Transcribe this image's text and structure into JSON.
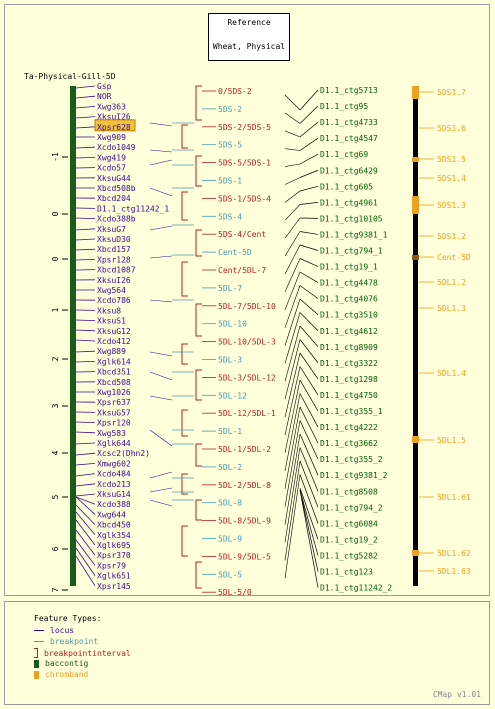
{
  "reference": {
    "line1": "Reference",
    "line2": "Wheat, Physical"
  },
  "map_title": "Ta-Physical-Gill-5D",
  "scale_ticks": [
    "-1",
    "0",
    "0",
    "1",
    "2",
    "3",
    "4",
    "5",
    "6",
    "7"
  ],
  "loci": [
    "Gsp",
    "NOR",
    "Xwg363",
    "XksuI26",
    "Xpsr628",
    "Xwg909",
    "Xcdo1049",
    "Xwg419",
    "Xcdo57",
    "XksuG44",
    "Xbcd508b",
    "Xbcd204",
    "D1.1_ctg11242_1",
    "Xcdo388b",
    "XksuG7",
    "XksuD30",
    "Xbcd157",
    "Xpsr128",
    "Xbcd1087",
    "XksuI26",
    "Xwg564",
    "Xcdo786",
    "Xksu8",
    "XksuS1",
    "XksuG12",
    "Xcdo412",
    "Xwg889",
    "Xglk614",
    "Xbcd351",
    "Xbcd508",
    "Xwg1026",
    "Xpsr637",
    "XksuG57",
    "Xpsr120",
    "Xwg583",
    "Xglk644",
    "Xcsc2(Dhn2)",
    "Xmwg602",
    "Xcdo484",
    "Xcdo213",
    "XksuG14",
    "Xcdo388",
    "Xwg644",
    "Xbcd450",
    "Xglk354",
    "Xglk695",
    "Xpsr370",
    "Xpsr79",
    "Xglk651",
    "Xpsr145"
  ],
  "highlighted_locus": "Xpsr628",
  "breakpoints": [
    {
      "label": "0/5DS-2",
      "kind": "interval"
    },
    {
      "label": "5DS-2",
      "kind": "breakpoint"
    },
    {
      "label": "5DS-2/5DS-5",
      "kind": "interval"
    },
    {
      "label": "5DS-5",
      "kind": "breakpoint"
    },
    {
      "label": "5DS-5/5DS-1",
      "kind": "interval"
    },
    {
      "label": "5DS-1",
      "kind": "breakpoint"
    },
    {
      "label": "5DS-1/5DS-4",
      "kind": "interval"
    },
    {
      "label": "5DS-4",
      "kind": "breakpoint"
    },
    {
      "label": "5DS-4/Cent",
      "kind": "interval"
    },
    {
      "label": "Cent-5D",
      "kind": "breakpoint"
    },
    {
      "label": "Cent/5DL-7",
      "kind": "interval"
    },
    {
      "label": "5DL-7",
      "kind": "breakpoint"
    },
    {
      "label": "5DL-7/5DL-10",
      "kind": "interval"
    },
    {
      "label": "5DL-10",
      "kind": "breakpoint"
    },
    {
      "label": "5DL-10/5DL-3",
      "kind": "interval"
    },
    {
      "label": "5DL-3",
      "kind": "breakpoint"
    },
    {
      "label": "5DL-3/5DL-12",
      "kind": "interval"
    },
    {
      "label": "5DL-12",
      "kind": "breakpoint"
    },
    {
      "label": "5DL-12/5DL-1",
      "kind": "interval"
    },
    {
      "label": "5DL-1",
      "kind": "breakpoint"
    },
    {
      "label": "5DL-1/5DL-2",
      "kind": "interval"
    },
    {
      "label": "5DL-2",
      "kind": "breakpoint"
    },
    {
      "label": "5DL-2/5DL-8",
      "kind": "interval"
    },
    {
      "label": "5DL-8",
      "kind": "breakpoint"
    },
    {
      "label": "5DL-8/5DL-9",
      "kind": "interval"
    },
    {
      "label": "5DL-9",
      "kind": "breakpoint"
    },
    {
      "label": "5DL-9/5DL-5",
      "kind": "interval"
    },
    {
      "label": "5DL-5",
      "kind": "breakpoint"
    },
    {
      "label": "5DL-5/0",
      "kind": "interval"
    }
  ],
  "contigs": [
    "D1.1_ctg5713",
    "D1.1_ctg95",
    "D1.1_ctg4733",
    "D1.1_ctg4547",
    "D1.1_ctg69",
    "D1.1_ctg6429",
    "D1.1_ctg605",
    "D1.1_ctg4961",
    "D1.1_ctg10105",
    "D1.1_ctg9381_1",
    "D1.1_ctg794_1",
    "D1.1_ctg19_1",
    "D1.1_ctg4478",
    "D1.1_ctg4076",
    "D1.1_ctg3510",
    "D1.1_ctg4612",
    "D1.1_ctg8909",
    "D1.1_ctg3322",
    "D1.1_ctg1298",
    "D1.1_ctg4750",
    "D1.1_ctg355_1",
    "D1.1_ctg4222",
    "D1.1_ctg3662",
    "D1.1_ctg355_2",
    "D1.1_ctg9381_2",
    "D1.1_ctg8508",
    "D1.1_ctg794_2",
    "D1.1_ctg6084",
    "D1.1_ctg19_2",
    "D1.1_ctg5282",
    "D1.1_ctg123",
    "D1.1_ctg11242_2"
  ],
  "chrombands": [
    "5DS1.7",
    "5DS1.6",
    "5DS1.5",
    "5DS1.4",
    "5DS1.3",
    "5DS1.2",
    "Cent-5D",
    "5DL1.2",
    "5DL1.3",
    "5DL1.4",
    "5DL1.5",
    "5DL1.61",
    "5DL1.62",
    "5DL1.63"
  ],
  "legend": {
    "title": "Feature Types:",
    "items": [
      {
        "label": "locus",
        "color": "#3a0a8a"
      },
      {
        "label": "breakpoint",
        "color": "#4a9aa8"
      },
      {
        "label": "breakpointinterval",
        "color": "#b0202a"
      },
      {
        "label": "baccontig",
        "color": "#1a5a1a"
      },
      {
        "label": "chromband",
        "color": "#f0a020"
      }
    ]
  },
  "colors": {
    "locus": "#3a0a8a",
    "breakpoint": "#4a9aa8",
    "interval": "#b0202a",
    "contig_bar": "#1a5a1a",
    "chromband": "#f0a020",
    "contig_text": "#006000"
  },
  "version": "CMap v1.01"
}
